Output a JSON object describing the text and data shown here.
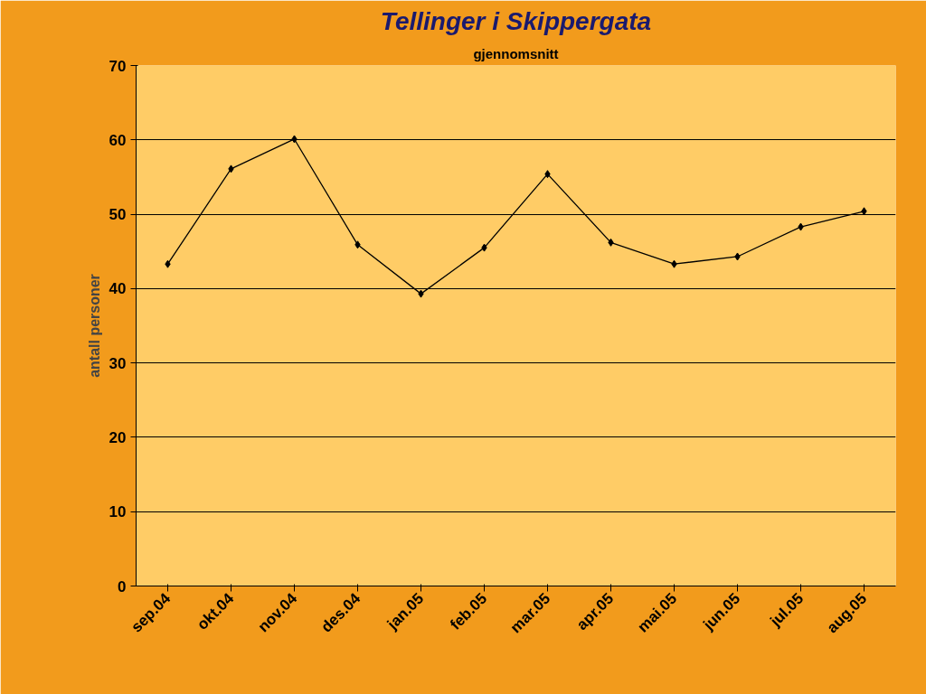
{
  "chart_data": {
    "type": "line",
    "title": "Tellinger i Skippergata",
    "subtitle": "gjennomsnitt",
    "ylabel": "antall personer",
    "categories": [
      "sep.04",
      "okt.04",
      "nov.04",
      "des.04",
      "jan.05",
      "feb.05",
      "mar.05",
      "apr.05",
      "mai.05",
      "jun.05",
      "jul.05",
      "aug.05"
    ],
    "series": [
      {
        "color": "#000000",
        "values": [
          43.3,
          56.1,
          60.1,
          45.9,
          39.3,
          45.5,
          55.4,
          46.2,
          43.3,
          44.3,
          48.3,
          50.4
        ]
      }
    ],
    "ylim": [
      0,
      70
    ],
    "yticks": [
      0,
      10,
      20,
      30,
      40,
      50,
      60,
      70
    ],
    "grid": "y",
    "marker": "diamond",
    "line_style": "solid"
  }
}
